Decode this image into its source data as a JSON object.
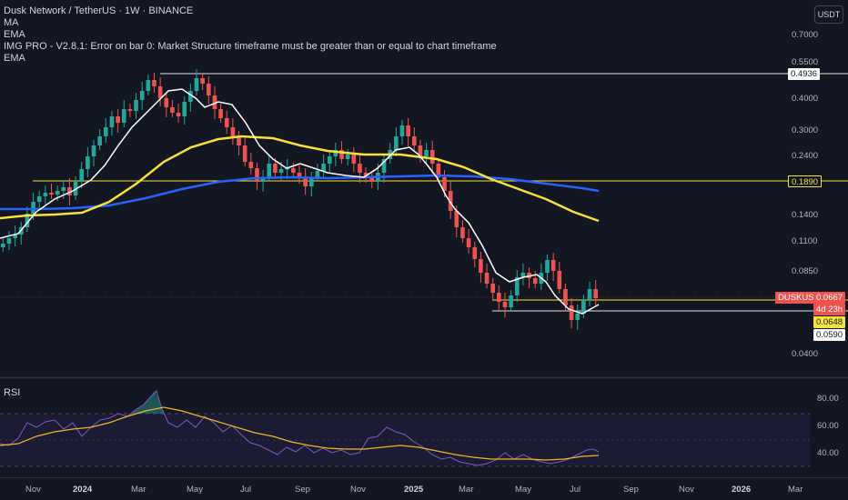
{
  "legend": {
    "title": "Dusk Network / TetherUS · 1W · BINANCE",
    "ma": "MA",
    "ema1": "EMA",
    "img_pro": "IMG PRO - V2.8.1: Error on bar 0: Market Structure timeframe must be greater than or equal to chart timeframe",
    "ema2": "EMA"
  },
  "currency_button": "USDT",
  "rsi_title": "RSI",
  "price_axis": [
    "0.7000",
    "0.5500",
    "0.4000",
    "0.3000",
    "0.2400",
    "0.1400",
    "0.1100",
    "0.0850",
    "0.0400"
  ],
  "rsi_axis": [
    "80.00",
    "60.00",
    "40.00"
  ],
  "tags": {
    "level_top": "0.4936",
    "level_mid": "0.1890",
    "symbol": "DUSKUSDT",
    "last_price": "0.0667",
    "countdown": "4d 23h",
    "level_yellow": "0.0648",
    "level_low": "0.0590"
  },
  "time_axis": [
    {
      "label": "Nov",
      "bold": false
    },
    {
      "label": "2024",
      "bold": true
    },
    {
      "label": "Mar",
      "bold": false
    },
    {
      "label": "May",
      "bold": false
    },
    {
      "label": "Jul",
      "bold": false
    },
    {
      "label": "Sep",
      "bold": false
    },
    {
      "label": "Nov",
      "bold": false
    },
    {
      "label": "2025",
      "bold": true
    },
    {
      "label": "Mar",
      "bold": false
    },
    {
      "label": "May",
      "bold": false
    },
    {
      "label": "Jul",
      "bold": false
    },
    {
      "label": "Sep",
      "bold": false
    },
    {
      "label": "Nov",
      "bold": false
    },
    {
      "label": "2026",
      "bold": true
    },
    {
      "label": "Mar",
      "bold": false
    }
  ],
  "colors": {
    "background": "#131722",
    "up": "#26a69a",
    "down": "#ef5350",
    "ema_yellow": "#f7e13b",
    "ema_blue": "#2962ff",
    "ma_white": "#ffffff",
    "rsi_line": "#7e57c2",
    "rsi_ma": "#f0b429"
  }
}
